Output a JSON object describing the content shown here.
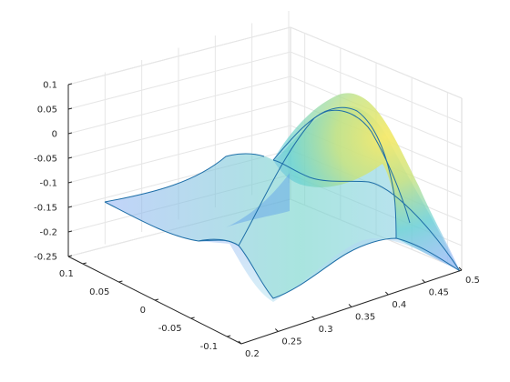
{
  "chart_data": {
    "type": "surface",
    "title": "",
    "xlabel": "",
    "ylabel": "",
    "zlabel": "",
    "xlim": [
      0.2,
      0.5
    ],
    "ylim": [
      -0.12,
      0.12
    ],
    "zlim": [
      -0.25,
      0.1
    ],
    "grid": true,
    "view": "3-D perspective, azimuth approx. -37.5°, elevation 30°",
    "colormap": "parula (blue → teal → yellow), semi-transparent faces",
    "x_ticks": [
      "0.2",
      "0.25",
      "0.3",
      "0.35",
      "0.4",
      "0.45",
      "0.5"
    ],
    "y_ticks": [
      "-0.1",
      "-0.05",
      "0",
      "0.05",
      "0.1"
    ],
    "z_ticks": [
      "-0.25",
      "-0.2",
      "-0.15",
      "-0.1",
      "-0.05",
      "0",
      "0.05",
      "0.1"
    ],
    "series": [
      {
        "kind": "surface-peak",
        "x_center": 0.42,
        "y_center": -0.02,
        "z_peak": 0.07
      },
      {
        "kind": "surface-corner-values",
        "corners": [
          {
            "x": 0.2,
            "y": 0.12,
            "z": -0.15
          },
          {
            "x": 0.2,
            "y": -0.12,
            "z": -0.22
          },
          {
            "x": 0.5,
            "y": -0.12,
            "z": -0.2
          },
          {
            "x": 0.5,
            "y": 0.12,
            "z": -0.12
          }
        ]
      }
    ]
  },
  "colors": {
    "axis": "#262626",
    "grid": "#e6e6e6",
    "surface_low": "#8fa3f2",
    "surface_mid": "#5fcfd0",
    "surface_high": "#f8ea6a",
    "edge": "#1f6fa8"
  }
}
